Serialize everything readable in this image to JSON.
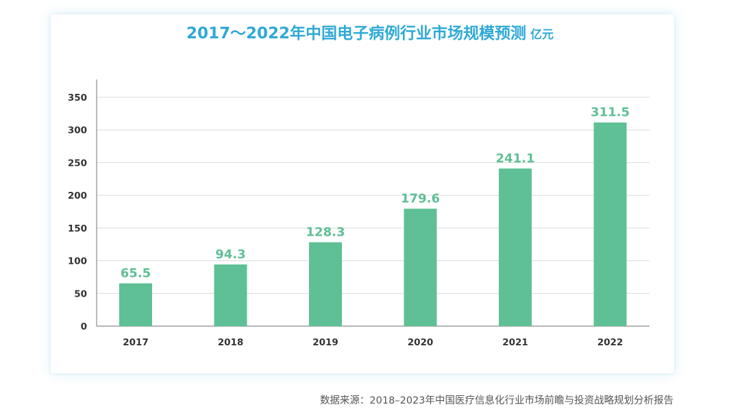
{
  "chart_data": {
    "type": "bar",
    "title": "2017～2022年中国电子病例行业市场规模预测",
    "unit": "亿元",
    "categories": [
      "2017",
      "2018",
      "2019",
      "2020",
      "2021",
      "2022"
    ],
    "values": [
      65.5,
      94.3,
      128.3,
      179.6,
      241.1,
      311.5
    ],
    "value_labels": [
      "65.5",
      "94.3",
      "128.3",
      "179.6",
      "241.1",
      "311.5"
    ],
    "yticks": [
      "0",
      "50",
      "100",
      "150",
      "200",
      "250",
      "300",
      "350"
    ],
    "ylim": [
      0,
      350
    ],
    "xlabel": "",
    "ylabel": "",
    "grid": true,
    "legend": "none",
    "colors": {
      "bar": "#5fc095",
      "value_label": "#5fc095",
      "title": "#2fa9d6",
      "grid": "#d9d9d9",
      "axis": "#8c8c8c",
      "tick_label": "#333333"
    }
  },
  "source": "数据来源：2018–2023年中国医疗信息化行业市场前瞻与投资战略规划分析报告"
}
